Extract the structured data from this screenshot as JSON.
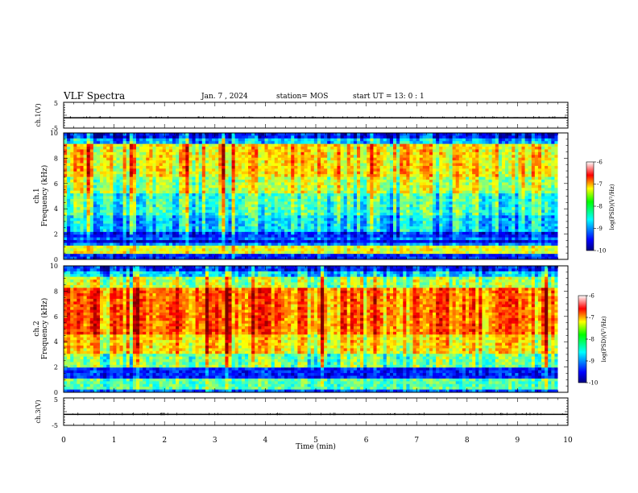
{
  "header": {
    "title": "VLF Spectra",
    "date": "Jan. 7 , 2024",
    "station": "station= MOS",
    "start": "start UT =  13: 0  : 1"
  },
  "chart_data": [
    {
      "type": "line",
      "name": "ch1-waveform",
      "ylabel": "ch.1(V)",
      "xlim": [
        0,
        10
      ],
      "ylim": [
        -5,
        5
      ],
      "ytick_labels": [
        "5",
        "-5"
      ],
      "baseline": -1
    },
    {
      "type": "heatmap",
      "name": "ch1-spectrogram",
      "ylabel": "ch.1",
      "ylabel2": "Frequency (kHz)",
      "xlim": [
        0,
        9.8
      ],
      "ylim": [
        0,
        10
      ],
      "ytick_labels": [
        "0",
        "2",
        "4",
        "6",
        "8",
        "10"
      ],
      "colorbar": {
        "label": "log(PSD)(V²/Hz)",
        "tick_labels": [
          "-6",
          "-7",
          "-8",
          "-9",
          "-10"
        ],
        "range": [
          -10,
          -6
        ]
      }
    },
    {
      "type": "heatmap",
      "name": "ch2-spectrogram",
      "ylabel": "ch.2",
      "ylabel2": "Frequency (kHz)",
      "xlim": [
        0,
        9.8
      ],
      "ylim": [
        0,
        10
      ],
      "ytick_labels": [
        "0",
        "2",
        "4",
        "6",
        "8",
        "10"
      ],
      "colorbar": {
        "label": "log(PSD)(V²/Hz)",
        "tick_labels": [
          "-6",
          "-7",
          "-8",
          "-9",
          "-10"
        ],
        "range": [
          -10,
          -6
        ]
      }
    },
    {
      "type": "line",
      "name": "ch3-waveform",
      "ylabel": "ch.3(V)",
      "xlim": [
        0,
        10
      ],
      "ylim": [
        -5,
        5
      ],
      "ytick_labels": [
        "5",
        "-5"
      ],
      "baseline": -1
    }
  ],
  "xaxis": {
    "label": "Time (min)",
    "tick_labels": [
      "0",
      "1",
      "2",
      "3",
      "4",
      "5",
      "6",
      "7",
      "8",
      "9",
      "10"
    ]
  },
  "colors": {
    "jet_low": "#000080",
    "jet_high": "#ffffff",
    "frame": "#000000"
  }
}
